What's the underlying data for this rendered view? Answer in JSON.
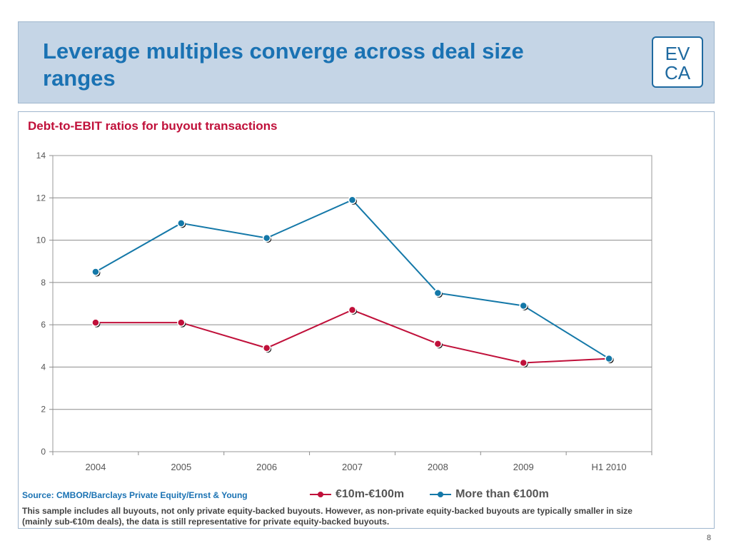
{
  "header": {
    "title": "Leverage multiples converge across deal size ranges",
    "logo": {
      "top": "EV",
      "bottom": "CA"
    }
  },
  "chart_data": {
    "type": "line",
    "title": "Debt-to-EBIT ratios for buyout transactions",
    "xlabel": "",
    "ylabel": "",
    "categories": [
      "2004",
      "2005",
      "2006",
      "2007",
      "2008",
      "2009",
      "H1 2010"
    ],
    "ylim": [
      0,
      14
    ],
    "yticks": [
      "0",
      "2",
      "4",
      "6",
      "8",
      "10",
      "12",
      "14"
    ],
    "grid": true,
    "legend_position": "bottom",
    "series": [
      {
        "name": "€10m-€100m",
        "color": "#c0103a",
        "values": [
          6.1,
          6.1,
          4.9,
          6.7,
          5.1,
          4.2,
          4.4
        ]
      },
      {
        "name": "More than €100m",
        "color": "#1478a8",
        "values": [
          8.5,
          10.8,
          10.1,
          11.9,
          7.5,
          6.9,
          4.4
        ]
      }
    ]
  },
  "footer": {
    "source": "Source: CMBOR/Barclays Private Equity/Ernst & Young",
    "note": "This sample includes all buyouts, not only private equity-backed buyouts. However, as non-private equity-backed buyouts are typically smaller in size (mainly sub-€10m deals), the data is still representative for private equity-backed buyouts.",
    "page_number": "8"
  }
}
